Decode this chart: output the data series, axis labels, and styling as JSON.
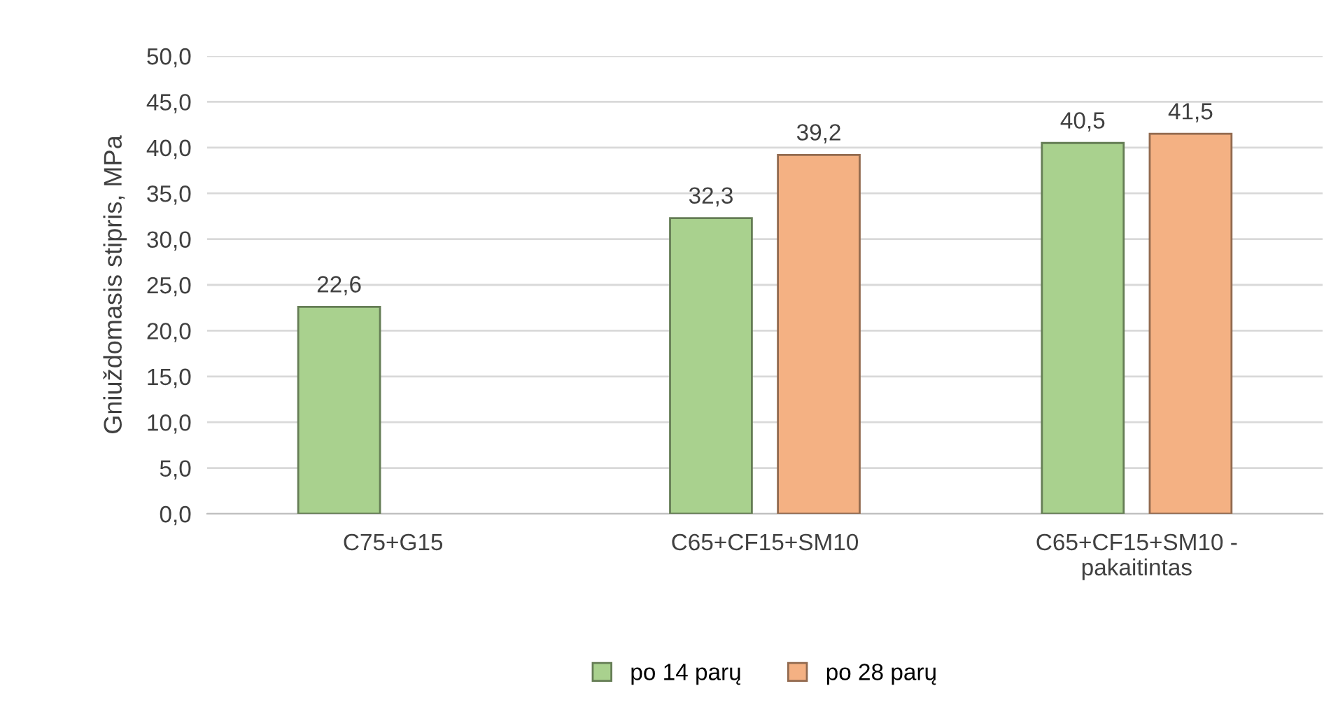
{
  "chart_data": {
    "type": "bar",
    "ylabel": "Gniuždomasis stipris, MPa",
    "categories": [
      "C75+G15",
      "C65+CF15+SM10",
      "C65+CF15+SM10 -\npakaitintas"
    ],
    "series": [
      {
        "name": "po 14 parų",
        "color": "#a9d18e",
        "values": [
          22.6,
          32.3,
          40.5
        ],
        "value_labels": [
          "22,6",
          "32,3",
          "40,5"
        ]
      },
      {
        "name": "po 28 parų",
        "color": "#f4b183",
        "values": [
          null,
          39.2,
          41.5
        ],
        "value_labels": [
          null,
          "39,2",
          "41,5"
        ]
      }
    ],
    "ylim": [
      0,
      50
    ],
    "yticks": [
      {
        "value": 0,
        "label": "0,0"
      },
      {
        "value": 5,
        "label": "5,0"
      },
      {
        "value": 10,
        "label": "10,0"
      },
      {
        "value": 15,
        "label": "15,0"
      },
      {
        "value": 20,
        "label": "20,0"
      },
      {
        "value": 25,
        "label": "25,0"
      },
      {
        "value": 30,
        "label": "30,0"
      },
      {
        "value": 35,
        "label": "35,0"
      },
      {
        "value": 40,
        "label": "40,0"
      },
      {
        "value": 45,
        "label": "45,0"
      },
      {
        "value": 50,
        "label": "50,0"
      }
    ],
    "grid": "y",
    "legend": "bottom"
  }
}
